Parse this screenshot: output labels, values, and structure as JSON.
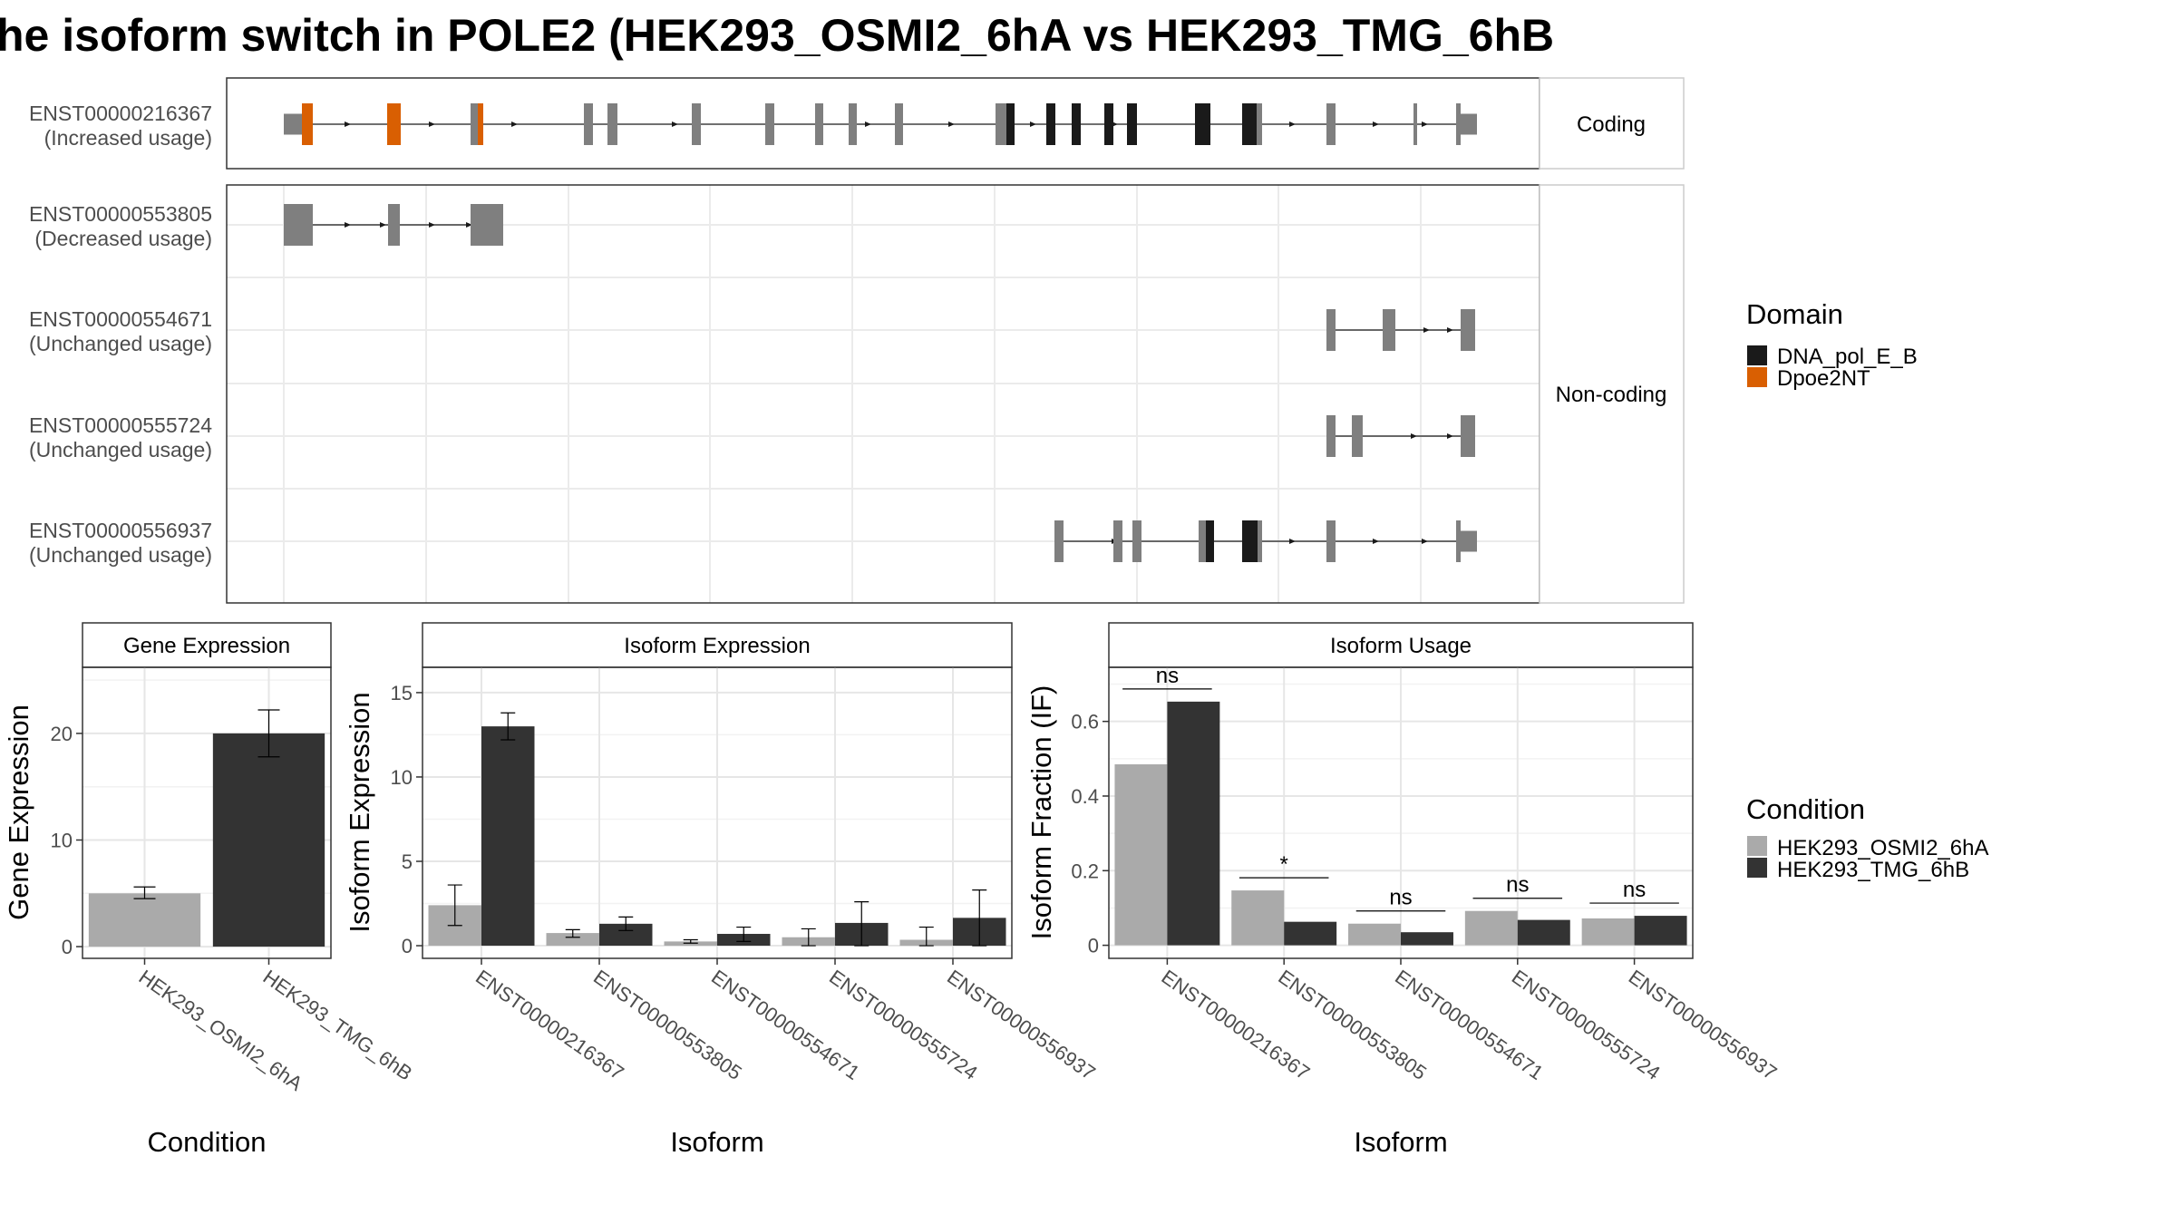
{
  "title": "he isoform switch in POLE2 (HEK293_OSMI2_6hA vs HEK293_TMG_6hB",
  "colors": {
    "domain_dna_pol": "#1a1a1a",
    "domain_dpoe2nt": "#d95f02",
    "exon": "#7f7f7f",
    "cond_a": "#aaaaaa",
    "cond_b": "#333333"
  },
  "structure": {
    "coding_strip": "Coding",
    "noncoding_strip": "Non-coding",
    "isoforms": [
      {
        "id": "ENST00000216367",
        "usage": "(Increased usage)"
      },
      {
        "id": "ENST00000553805",
        "usage": "(Decreased usage)"
      },
      {
        "id": "ENST00000554671",
        "usage": "(Unchanged usage)"
      },
      {
        "id": "ENST00000555724",
        "usage": "(Unchanged usage)"
      },
      {
        "id": "ENST00000556937",
        "usage": "(Unchanged usage)"
      }
    ]
  },
  "legend": {
    "domain_title": "Domain",
    "domain_items": [
      "DNA_pol_E_B",
      "Dpoe2NT"
    ],
    "condition_title": "Condition",
    "condition_items": [
      "HEK293_OSMI2_6hA",
      "HEK293_TMG_6hB"
    ]
  },
  "chart_data": [
    {
      "type": "bar",
      "title": "Gene Expression",
      "xlabel": "Condition",
      "ylabel": "Gene Expression",
      "categories": [
        "HEK293_OSMI2_6hA",
        "HEK293_TMG_6hB"
      ],
      "values": [
        5.0,
        20.0
      ],
      "errors": [
        [
          4.5,
          5.6
        ],
        [
          17.8,
          22.2
        ]
      ],
      "yticks": [
        0,
        10,
        20
      ],
      "ylim": [
        -1.1,
        26.2
      ]
    },
    {
      "type": "bar",
      "title": "Isoform Expression",
      "xlabel": "Isoform",
      "ylabel": "Isoform Expression",
      "categories": [
        "ENST00000216367",
        "ENST00000553805",
        "ENST00000554671",
        "ENST00000555724",
        "ENST00000556937"
      ],
      "series": [
        {
          "name": "HEK293_OSMI2_6hA",
          "values": [
            2.4,
            0.75,
            0.25,
            0.5,
            0.35
          ],
          "errors": [
            [
              1.2,
              3.6
            ],
            [
              0.5,
              0.95
            ],
            [
              0.15,
              0.35
            ],
            [
              0.0,
              1.0
            ],
            [
              0.0,
              1.1
            ]
          ]
        },
        {
          "name": "HEK293_TMG_6hB",
          "values": [
            13.0,
            1.3,
            0.7,
            1.35,
            1.65
          ],
          "errors": [
            [
              12.2,
              13.8
            ],
            [
              0.9,
              1.7
            ],
            [
              0.25,
              1.1
            ],
            [
              0.0,
              2.6
            ],
            [
              0.0,
              3.3
            ]
          ]
        }
      ],
      "yticks": [
        0,
        5,
        10,
        15
      ],
      "ylim": [
        -0.75,
        16.5
      ]
    },
    {
      "type": "bar",
      "title": "Isoform Usage",
      "xlabel": "Isoform",
      "ylabel": "Isoform Fraction (IF)",
      "categories": [
        "ENST00000216367",
        "ENST00000553805",
        "ENST00000554671",
        "ENST00000555724",
        "ENST00000556937"
      ],
      "series": [
        {
          "name": "HEK293_OSMI2_6hA",
          "values": [
            0.485,
            0.147,
            0.058,
            0.092,
            0.072
          ]
        },
        {
          "name": "HEK293_TMG_6hB",
          "values": [
            0.653,
            0.063,
            0.035,
            0.068,
            0.079
          ]
        }
      ],
      "significance": [
        "ns",
        "*",
        "ns",
        "ns",
        "ns"
      ],
      "yticks": [
        0.0,
        0.2,
        0.4,
        0.6
      ],
      "ylim": [
        -0.035,
        0.745
      ]
    }
  ]
}
